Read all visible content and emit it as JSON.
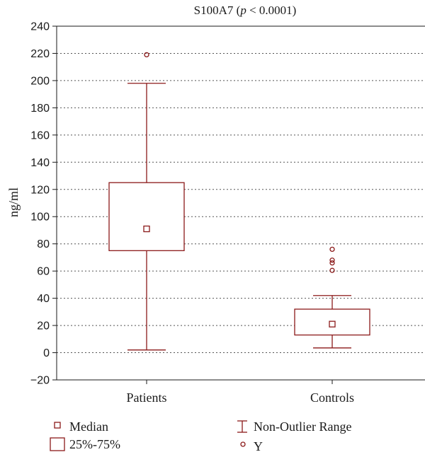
{
  "chart_data": {
    "type": "box",
    "title": "S100A7 (",
    "title_p": "p",
    "title_rest": " < 0.0001)",
    "ylabel": "ng/ml",
    "xlabel": "",
    "ylim": [
      -20,
      240
    ],
    "yticks": [
      -20,
      0,
      20,
      40,
      60,
      80,
      100,
      120,
      140,
      160,
      180,
      200,
      220,
      240
    ],
    "ytick_labels": [
      "−20",
      "0",
      "20",
      "40",
      "60",
      "80",
      "100",
      "120",
      "140",
      "160",
      "180",
      "200",
      "220",
      "240"
    ],
    "grid": "horizontal-dotted",
    "color": "#8b1a1a",
    "categories": [
      "Patients",
      "Controls"
    ],
    "boxes": [
      {
        "category": "Patients",
        "median": 91,
        "q1": 75,
        "q3": 125,
        "whisker_low": 2,
        "whisker_high": 198,
        "outliers": [
          219
        ]
      },
      {
        "category": "Controls",
        "median": 21,
        "q1": 13,
        "q3": 32,
        "whisker_low": 3.5,
        "whisker_high": 42,
        "outliers": [
          60.5,
          66,
          68,
          76
        ]
      }
    ],
    "legend": {
      "placement": "bottom",
      "items": [
        {
          "marker": "median-square",
          "label": "Median"
        },
        {
          "marker": "whisker",
          "label": "Non-Outlier Range"
        },
        {
          "marker": "box",
          "label": "25%-75%"
        },
        {
          "marker": "circle",
          "label": "Y"
        }
      ]
    }
  }
}
